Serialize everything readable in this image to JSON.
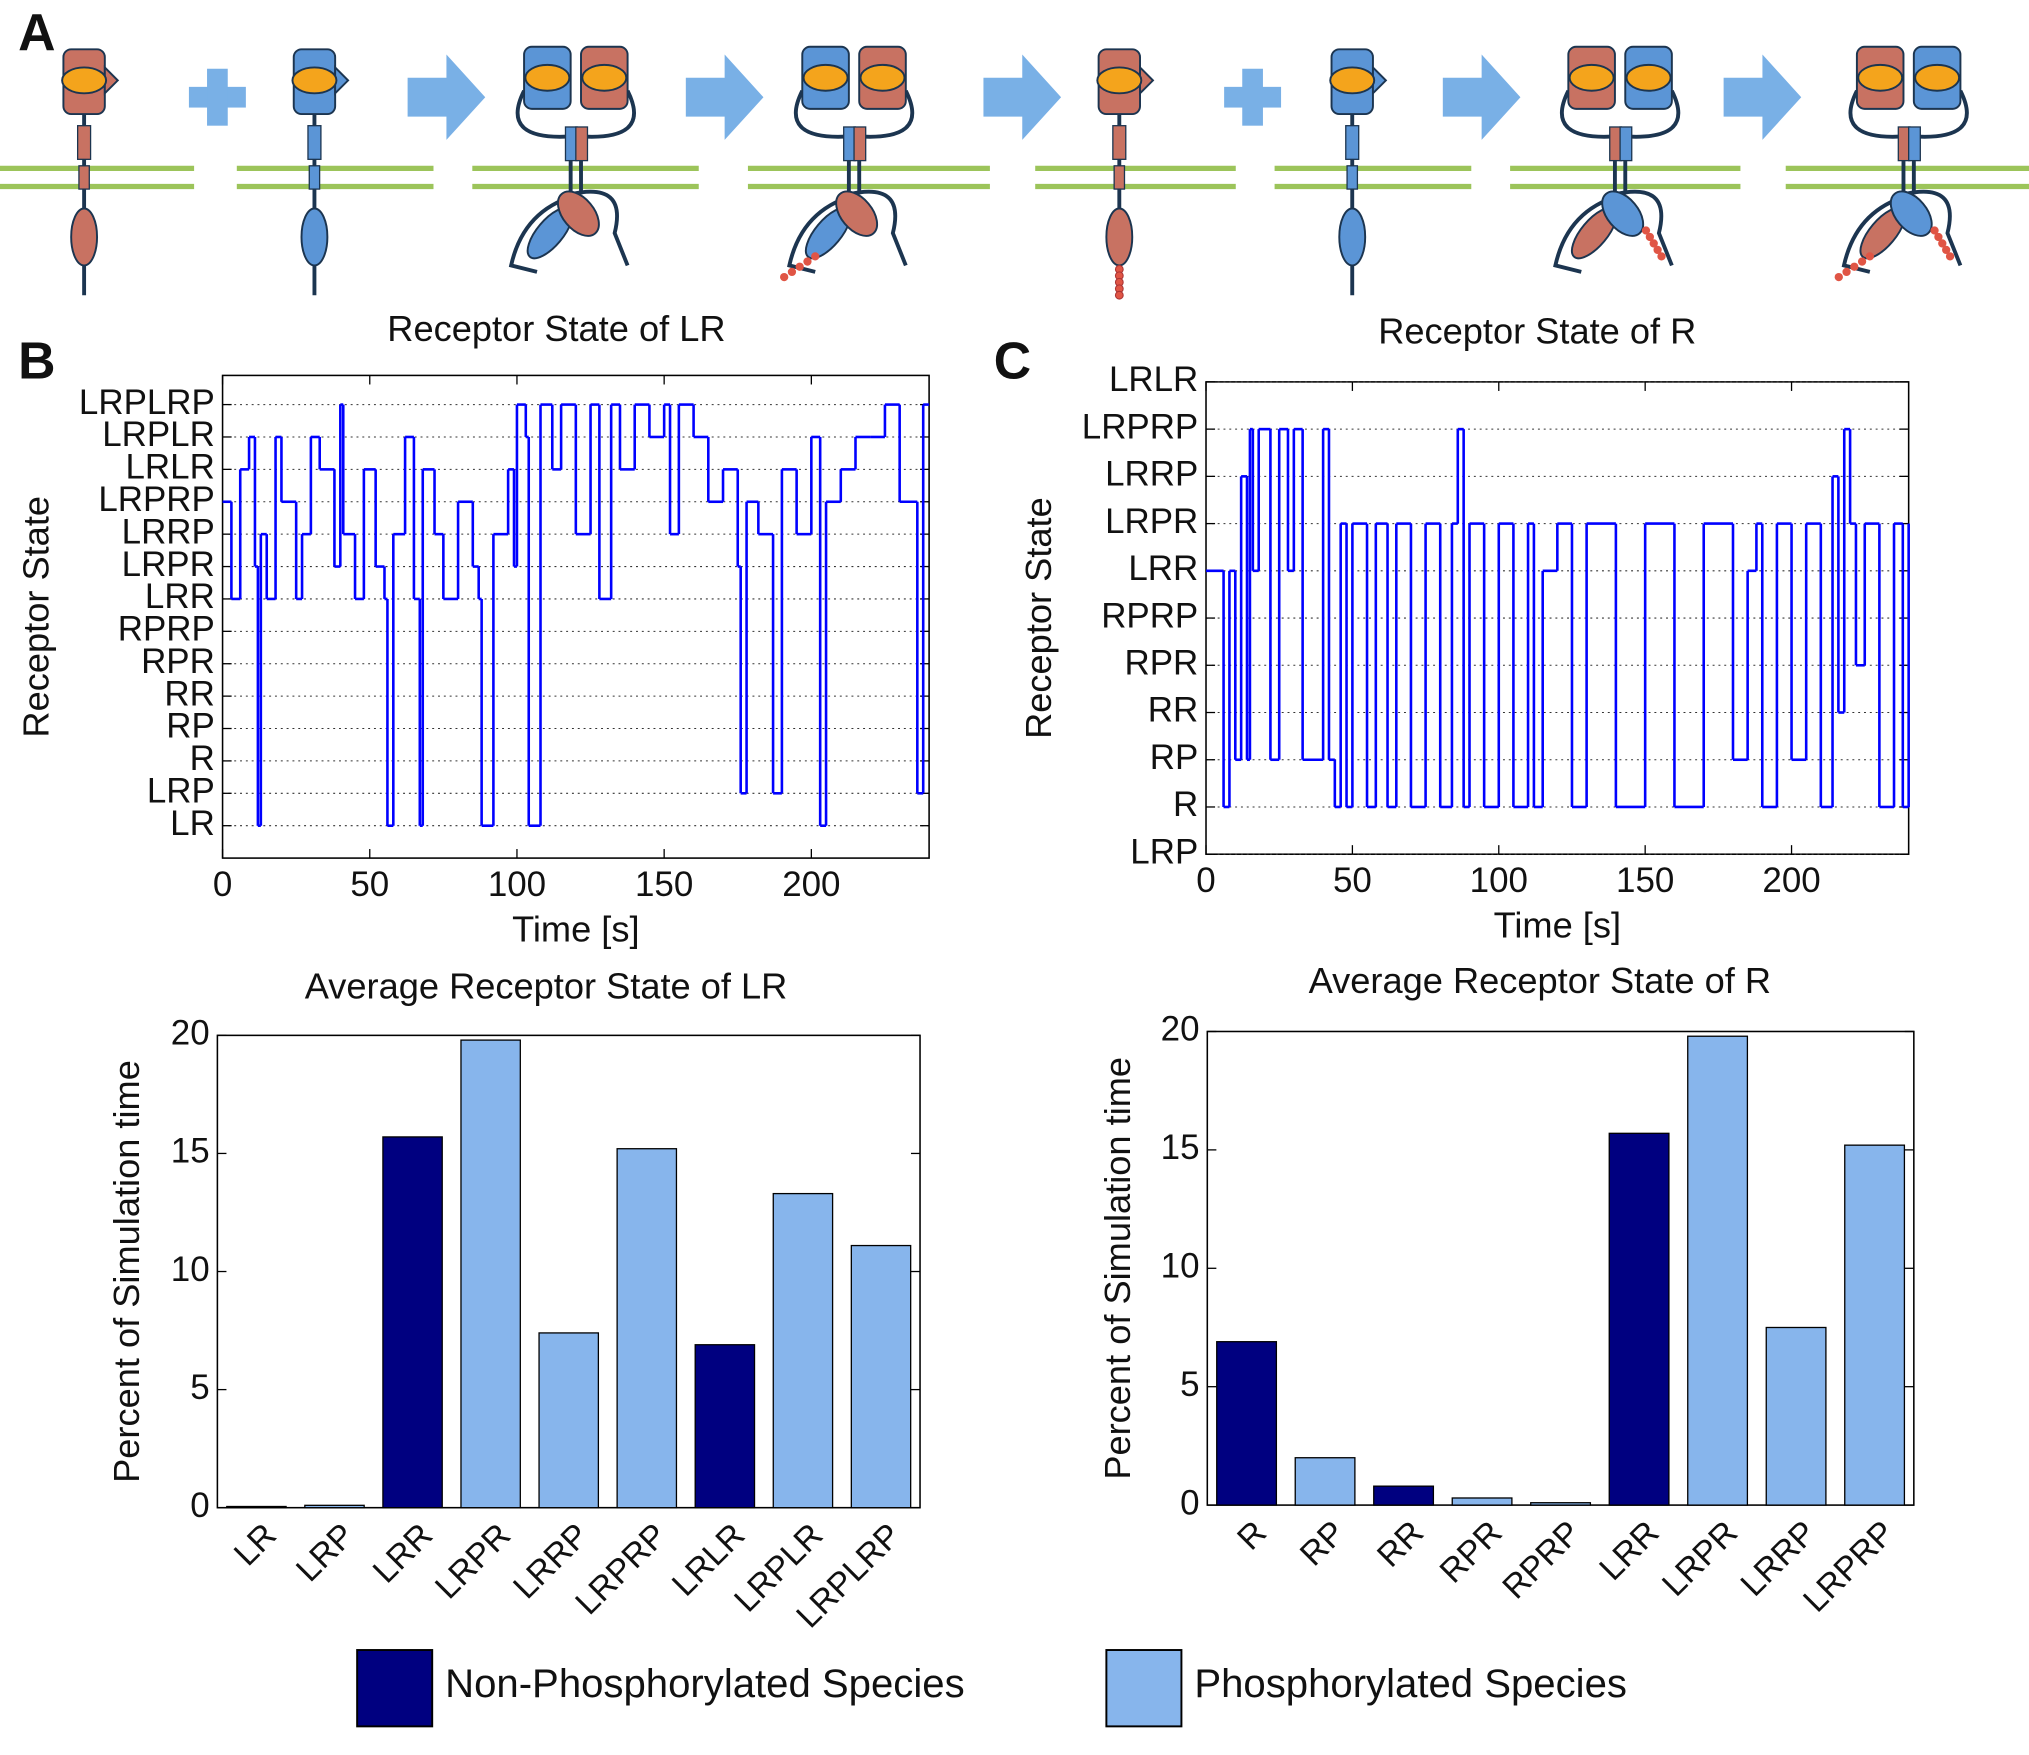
{
  "panel_labels": [
    "A",
    "B",
    "C"
  ],
  "chart_data": [
    {
      "type": "step",
      "title": "Receptor State of LR",
      "xlabel": "Time [s]",
      "ylabel": "Receptor State",
      "color": "#0000ff",
      "grid": true,
      "xlim": [
        0,
        240
      ],
      "xticks": [
        0,
        50,
        100,
        150,
        200
      ],
      "ylim": [
        0,
        14.9
      ],
      "yticks": [
        {
          "value": 1,
          "label": "LR"
        },
        {
          "value": 2,
          "label": "LRP"
        },
        {
          "value": 3,
          "label": "R"
        },
        {
          "value": 4,
          "label": "RP"
        },
        {
          "value": 5,
          "label": "RR"
        },
        {
          "value": 6,
          "label": "RPR"
        },
        {
          "value": 7,
          "label": "RPRP"
        },
        {
          "value": 8,
          "label": "LRR"
        },
        {
          "value": 9,
          "label": "LRPR"
        },
        {
          "value": 10,
          "label": "LRRP"
        },
        {
          "value": 11,
          "label": "LRPRP"
        },
        {
          "value": 12,
          "label": "LRLR"
        },
        {
          "value": 13,
          "label": "LRPLR"
        },
        {
          "value": 14,
          "label": "LRPLRP"
        }
      ],
      "x": [
        0,
        3,
        6,
        9,
        11,
        12,
        13,
        15,
        18,
        20,
        25,
        27,
        30,
        33,
        38,
        40,
        41,
        45,
        48,
        52,
        55,
        56,
        58,
        62,
        65,
        67,
        68,
        72,
        75,
        80,
        85,
        87,
        88,
        92,
        97,
        99,
        100,
        103,
        104,
        108,
        112,
        115,
        120,
        125,
        128,
        132,
        135,
        140,
        145,
        150,
        152,
        155,
        160,
        165,
        170,
        175,
        176,
        178,
        182,
        187,
        190,
        195,
        200,
        203,
        205,
        210,
        215,
        220,
        225,
        230,
        236,
        238,
        240
      ],
      "values": [
        11,
        8,
        12,
        13,
        9,
        1,
        10,
        8,
        13,
        11,
        8,
        10,
        13,
        12,
        9,
        14,
        10,
        8,
        12,
        9,
        8,
        1,
        10,
        13,
        8,
        1,
        12,
        10,
        8,
        11,
        9,
        8,
        1,
        10,
        12,
        9,
        14,
        13,
        1,
        14,
        12,
        14,
        10,
        14,
        8,
        14,
        12,
        14,
        13,
        14,
        10,
        14,
        13,
        11,
        12,
        9,
        2,
        11,
        10,
        2,
        12,
        10,
        13,
        1,
        11,
        12,
        13,
        13,
        14,
        11,
        2,
        14,
        14
      ]
    },
    {
      "type": "step",
      "title": "Receptor State of R",
      "xlabel": "Time [s]",
      "ylabel": "Receptor State",
      "color": "#0000ff",
      "grid": true,
      "xlim": [
        0,
        240
      ],
      "xticks": [
        0,
        50,
        100,
        150,
        200
      ],
      "ylim": [
        1,
        11
      ],
      "yticks": [
        {
          "value": 1,
          "label": "LRP"
        },
        {
          "value": 2,
          "label": "R"
        },
        {
          "value": 3,
          "label": "RP"
        },
        {
          "value": 4,
          "label": "RR"
        },
        {
          "value": 5,
          "label": "RPR"
        },
        {
          "value": 6,
          "label": "RPRP"
        },
        {
          "value": 7,
          "label": "LRR"
        },
        {
          "value": 8,
          "label": "LRPR"
        },
        {
          "value": 9,
          "label": "LRRP"
        },
        {
          "value": 10,
          "label": "LRPRP"
        },
        {
          "value": 11,
          "label": "LRLR"
        }
      ],
      "x": [
        0,
        6,
        8,
        10,
        12,
        14,
        15,
        16,
        18,
        22,
        25,
        28,
        30,
        33,
        40,
        42,
        44,
        46,
        48,
        50,
        55,
        58,
        62,
        65,
        70,
        75,
        80,
        84,
        86,
        88,
        90,
        95,
        100,
        105,
        110,
        112,
        115,
        120,
        125,
        130,
        140,
        150,
        160,
        170,
        180,
        185,
        188,
        190,
        195,
        200,
        205,
        210,
        214,
        216,
        218,
        220,
        222,
        225,
        230,
        235,
        238,
        240
      ],
      "values": [
        7,
        2,
        7,
        3,
        9,
        3,
        10,
        7,
        10,
        3,
        10,
        7,
        10,
        3,
        10,
        3,
        2,
        8,
        2,
        8,
        2,
        8,
        2,
        8,
        2,
        8,
        2,
        8,
        10,
        2,
        8,
        2,
        8,
        2,
        8,
        2,
        7,
        8,
        2,
        8,
        2,
        8,
        2,
        8,
        3,
        7,
        8,
        2,
        8,
        3,
        8,
        2,
        9,
        4,
        10,
        8,
        5,
        8,
        2,
        8,
        2,
        8
      ]
    },
    {
      "type": "bar",
      "title": "Average Receptor State of LR",
      "ylabel": "Percent of Simulation time",
      "categories": [
        "LR",
        "LRP",
        "LRR",
        "LRPR",
        "LRRP",
        "LRPRP",
        "LRLR",
        "LRPLR",
        "LRPLRP"
      ],
      "values": [
        0.05,
        0.1,
        15.7,
        19.8,
        7.4,
        15.2,
        6.9,
        13.3,
        11.1
      ],
      "colors": [
        "#000080",
        "#87b5ec",
        "#000080",
        "#87b5ec",
        "#87b5ec",
        "#87b5ec",
        "#000080",
        "#87b5ec",
        "#87b5ec"
      ],
      "ylim": [
        0,
        20
      ],
      "yticks": [
        0,
        5,
        10,
        15,
        20
      ]
    },
    {
      "type": "bar",
      "title": "Average Receptor State of R",
      "ylabel": "Percent of Simulation time",
      "categories": [
        "R",
        "RP",
        "RR",
        "RPR",
        "RPRP",
        "LRR",
        "LRPR",
        "LRRP",
        "LRPRP"
      ],
      "values": [
        6.9,
        2.0,
        0.8,
        0.3,
        0.1,
        15.7,
        19.8,
        7.5,
        15.2
      ],
      "colors": [
        "#000080",
        "#87b5ec",
        "#000080",
        "#87b5ec",
        "#87b5ec",
        "#000080",
        "#87b5ec",
        "#87b5ec",
        "#87b5ec"
      ],
      "ylim": [
        0,
        20
      ],
      "yticks": [
        0,
        5,
        10,
        15,
        20
      ]
    }
  ],
  "legend": [
    {
      "name": "Non-Phosphorylated Species",
      "color": "#000080"
    },
    {
      "name": "Phosphorylated Species",
      "color": "#87b5ec"
    }
  ]
}
